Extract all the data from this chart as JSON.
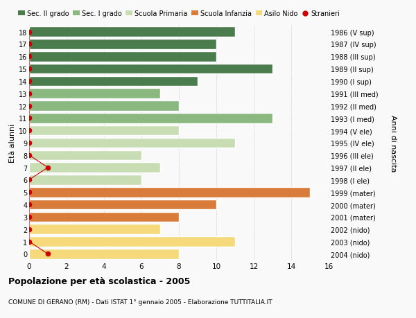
{
  "ages": [
    18,
    17,
    16,
    15,
    14,
    13,
    12,
    11,
    10,
    9,
    8,
    7,
    6,
    5,
    4,
    3,
    2,
    1,
    0
  ],
  "years": [
    "1986 (V sup)",
    "1987 (IV sup)",
    "1988 (III sup)",
    "1989 (II sup)",
    "1990 (I sup)",
    "1991 (III med)",
    "1992 (II med)",
    "1993 (I med)",
    "1994 (V ele)",
    "1995 (IV ele)",
    "1996 (III ele)",
    "1997 (II ele)",
    "1998 (I ele)",
    "1999 (mater)",
    "2000 (mater)",
    "2001 (mater)",
    "2002 (nido)",
    "2003 (nido)",
    "2004 (nido)"
  ],
  "values": [
    11,
    10,
    10,
    13,
    9,
    7,
    8,
    13,
    8,
    11,
    6,
    7,
    6,
    15,
    10,
    8,
    7,
    11,
    8
  ],
  "colors": [
    "#4a7c4e",
    "#4a7c4e",
    "#4a7c4e",
    "#4a7c4e",
    "#4a7c4e",
    "#8ab87e",
    "#8ab87e",
    "#8ab87e",
    "#c8ddb4",
    "#c8ddb4",
    "#c8ddb4",
    "#c8ddb4",
    "#c8ddb4",
    "#d97b3a",
    "#d97b3a",
    "#d97b3a",
    "#f5d97a",
    "#f5d97a",
    "#f5d97a"
  ],
  "stranieri_all_ages": [
    18,
    17,
    16,
    15,
    14,
    13,
    12,
    11,
    10,
    9,
    8,
    7,
    6,
    5,
    4,
    3,
    2,
    1,
    0
  ],
  "stranieri_all_x": [
    0,
    0,
    0,
    0,
    0,
    0,
    0,
    0,
    0,
    0,
    0,
    1,
    0,
    0,
    0,
    0,
    0,
    0,
    1
  ],
  "stranieri_line": {
    "ages": [
      7,
      0
    ],
    "x": [
      1,
      1
    ]
  },
  "title": "Popolazione per età scolastica - 2005",
  "subtitle": "COMUNE DI GERANO (RM) - Dati ISTAT 1° gennaio 2005 - Elaborazione TUTTITALIA.IT",
  "ylabel": "Età alunni",
  "ylabel_right": "Anni di nascita",
  "xlim": [
    0,
    16
  ],
  "xticks": [
    0,
    2,
    4,
    6,
    8,
    10,
    12,
    14,
    16
  ],
  "bg_color": "#f9f9f9",
  "bar_edgecolor": "#ffffff",
  "grid_color": "#d0d0d0",
  "legend_items": [
    {
      "label": "Sec. II grado",
      "color": "#4a7c4e"
    },
    {
      "label": "Sec. I grado",
      "color": "#8ab87e"
    },
    {
      "label": "Scuola Primaria",
      "color": "#c8ddb4"
    },
    {
      "label": "Scuola Infanzia",
      "color": "#d97b3a"
    },
    {
      "label": "Asilo Nido",
      "color": "#f5d97a"
    },
    {
      "label": "Stranieri",
      "color": "#cc0000"
    }
  ]
}
